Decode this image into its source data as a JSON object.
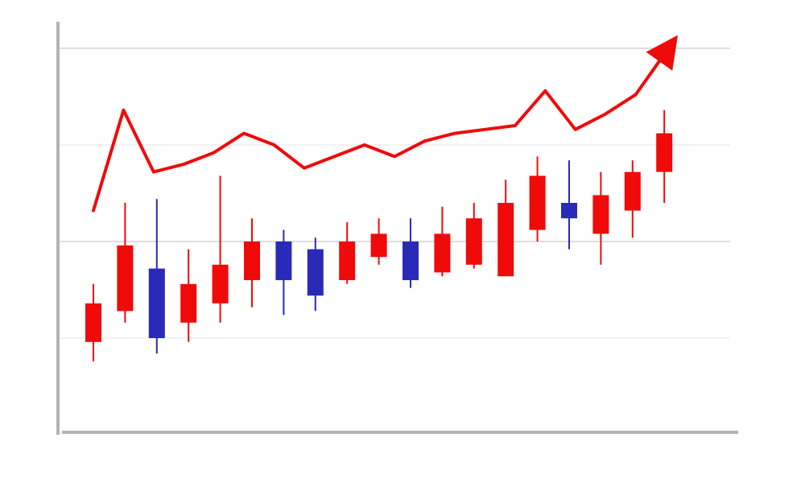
{
  "chart_data": {
    "type": "candlestick",
    "title": "",
    "xlabel": "",
    "ylabel": "",
    "ylim": [
      0,
      100
    ],
    "grid": true,
    "gridlines": [
      25,
      50,
      75,
      100
    ],
    "colors": {
      "up": "#f00a0a",
      "down": "#2a2ab8",
      "trend": "#f00a0a",
      "axis": "#b4b4b4",
      "grid": "#d4d4d4"
    },
    "candles": [
      {
        "open": 24,
        "close": 34,
        "high": 39,
        "low": 19,
        "direction": "up"
      },
      {
        "open": 32,
        "close": 49,
        "high": 60,
        "low": 29,
        "direction": "up"
      },
      {
        "open": 43,
        "close": 25,
        "high": 61,
        "low": 21,
        "direction": "down"
      },
      {
        "open": 29,
        "close": 39,
        "high": 48,
        "low": 24,
        "direction": "up"
      },
      {
        "open": 34,
        "close": 44,
        "high": 67,
        "low": 29,
        "direction": "up"
      },
      {
        "open": 40,
        "close": 50,
        "high": 56,
        "low": 33,
        "direction": "up"
      },
      {
        "open": 50,
        "close": 40,
        "high": 53,
        "low": 31,
        "direction": "down"
      },
      {
        "open": 48,
        "close": 36,
        "high": 51,
        "low": 32,
        "direction": "down"
      },
      {
        "open": 40,
        "close": 50,
        "high": 55,
        "low": 39,
        "direction": "up"
      },
      {
        "open": 46,
        "close": 52,
        "high": 56,
        "low": 44,
        "direction": "up"
      },
      {
        "open": 50,
        "close": 40,
        "high": 56,
        "low": 38,
        "direction": "down"
      },
      {
        "open": 42,
        "close": 52,
        "high": 59,
        "low": 41,
        "direction": "up"
      },
      {
        "open": 44,
        "close": 56,
        "high": 60,
        "low": 43,
        "direction": "up"
      },
      {
        "open": 41,
        "close": 60,
        "high": 66,
        "low": 41,
        "direction": "up"
      },
      {
        "open": 53,
        "close": 67,
        "high": 72,
        "low": 50,
        "direction": "up"
      },
      {
        "open": 60,
        "close": 56,
        "high": 71,
        "low": 48,
        "direction": "down"
      },
      {
        "open": 52,
        "close": 62,
        "high": 68,
        "low": 44,
        "direction": "up"
      },
      {
        "open": 58,
        "close": 68,
        "high": 71,
        "low": 51,
        "direction": "up"
      },
      {
        "open": 68,
        "close": 78,
        "high": 84,
        "low": 60,
        "direction": "up"
      }
    ],
    "trend_line": [
      58,
      84,
      68,
      70,
      73,
      78,
      75,
      69,
      72,
      75,
      72,
      76,
      78,
      79,
      80,
      89,
      79,
      83,
      88,
      99
    ],
    "trend_arrow": true
  }
}
